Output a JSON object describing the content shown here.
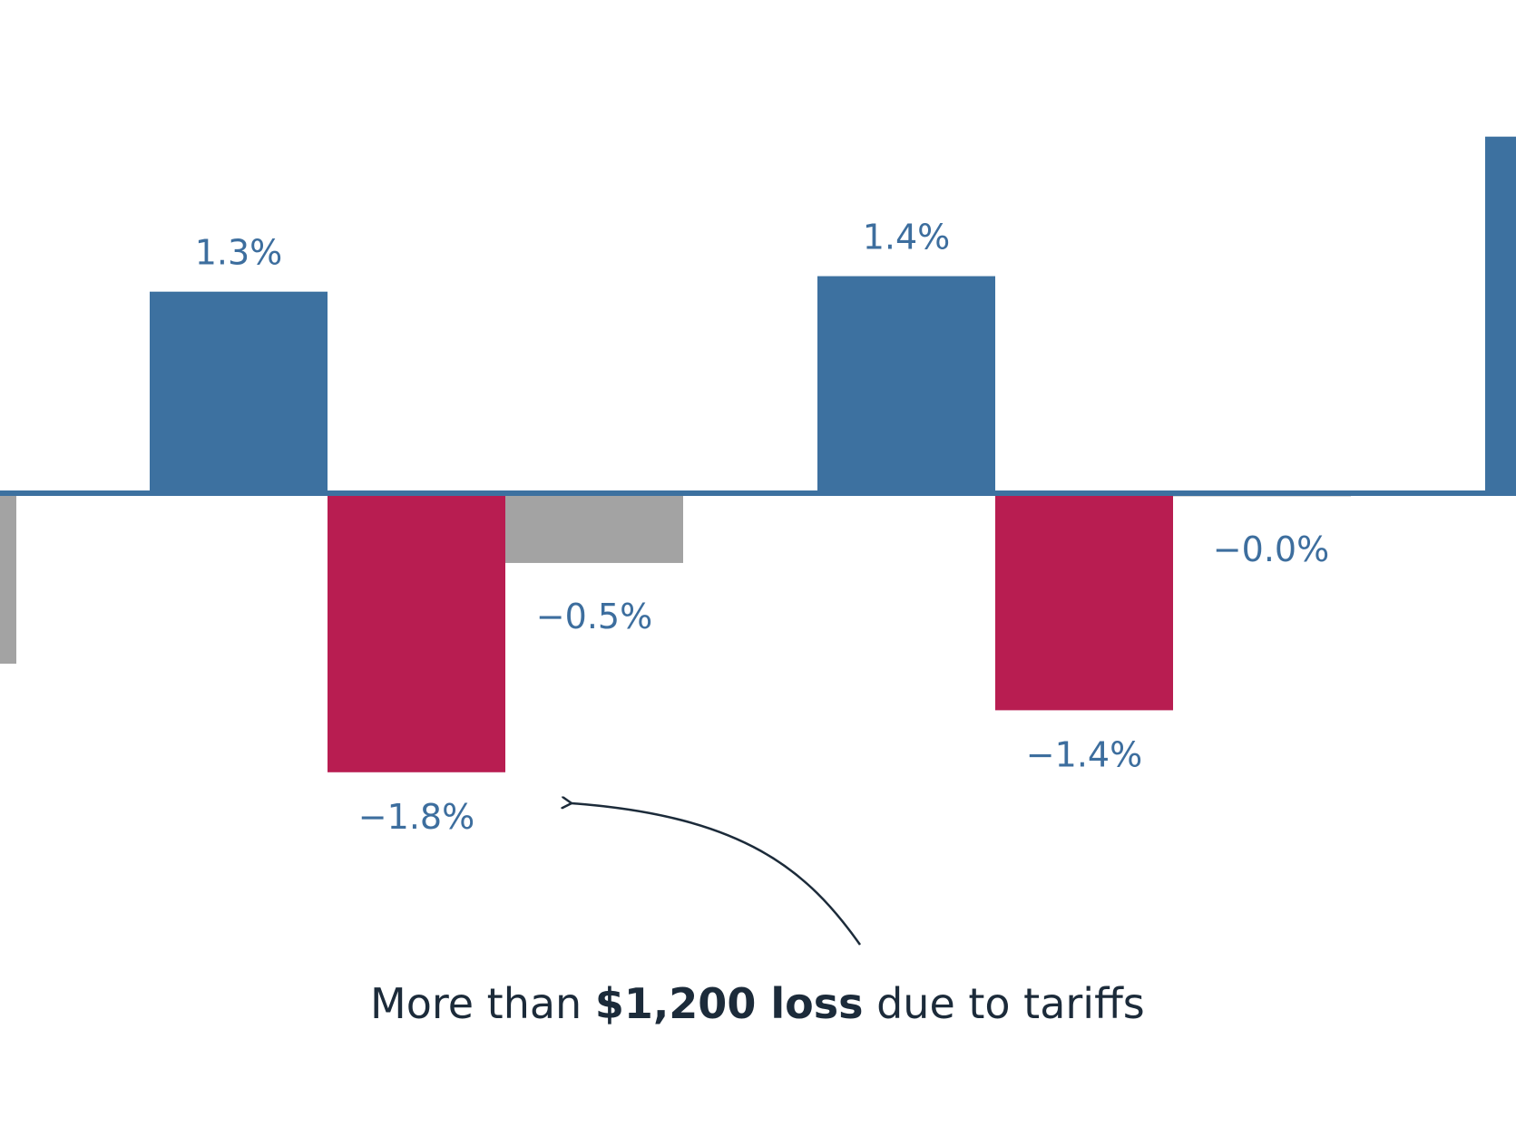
{
  "colors": {
    "positive": "#3d71a0",
    "tariff_loss": "#b81d51",
    "net": "#a3a3a3",
    "label": "#3d6e9e",
    "annotation": "#1c2b3a",
    "baseline": "#3d71a0"
  },
  "annotation": {
    "prefix": "More than ",
    "bold": "$1,200 loss",
    "suffix": " due to tariffs"
  },
  "chart_data": {
    "type": "bar",
    "ylim": [
      -2.4,
      2.3
    ],
    "grid": false,
    "legend": "none",
    "bars": [
      {
        "group": 0,
        "kind": "net",
        "value": -1.1,
        "label": ""
      },
      {
        "group": 1,
        "kind": "positive",
        "value": 1.3,
        "label": "1.3%"
      },
      {
        "group": 1,
        "kind": "tariff_loss",
        "value": -1.8,
        "label": "−1.8%"
      },
      {
        "group": 1,
        "kind": "net",
        "value": -0.45,
        "label": "−0.5%"
      },
      {
        "group": 2,
        "kind": "positive",
        "value": 1.4,
        "label": "1.4%"
      },
      {
        "group": 2,
        "kind": "tariff_loss",
        "value": -1.4,
        "label": "−1.4%"
      },
      {
        "group": 2,
        "kind": "net",
        "value": -0.02,
        "label": "−0.0%"
      },
      {
        "group": 3,
        "kind": "positive",
        "value": 2.3,
        "label": ""
      }
    ]
  }
}
